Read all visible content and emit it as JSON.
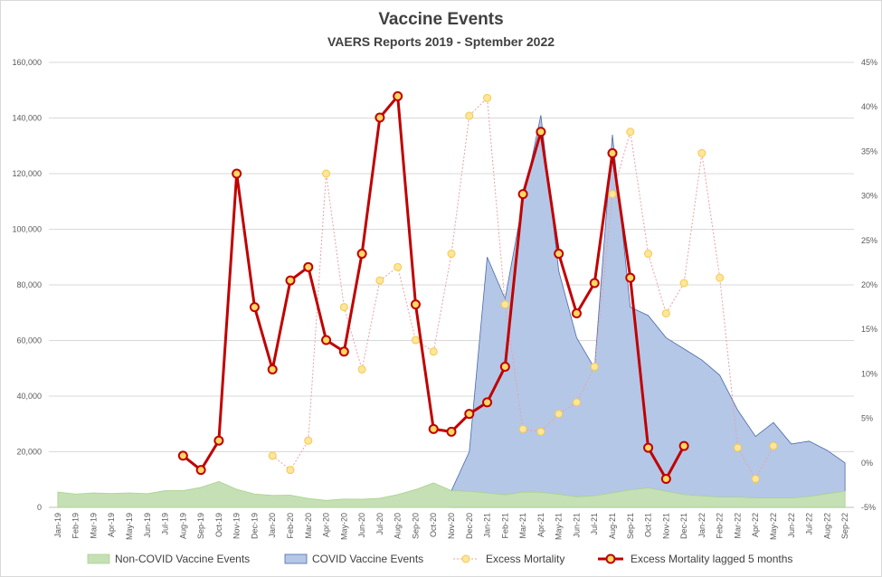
{
  "chart_data": {
    "type": "area",
    "title": "Vaccine Events",
    "subtitle": "VAERS Reports 2019 - Sptember 2022",
    "categories": [
      "Jan-19",
      "Feb-19",
      "Mar-19",
      "Apr-19",
      "May-19",
      "Jun-19",
      "Jul-19",
      "Aug-19",
      "Sep-19",
      "Oct-19",
      "Nov-19",
      "Dec-19",
      "Jan-20",
      "Feb-20",
      "Mar-20",
      "Apr-20",
      "May-20",
      "Jun-20",
      "Jul-20",
      "Aug-20",
      "Sep-20",
      "Oct-20",
      "Nov-20",
      "Dec-20",
      "Jan-21",
      "Feb-21",
      "Mar-21",
      "Apr-21",
      "May-21",
      "Jun-21",
      "Jul-21",
      "Aug-21",
      "Sep-21",
      "Oct-21",
      "Nov-21",
      "Dec-21",
      "Jan-22",
      "Feb-22",
      "Mar-22",
      "Apr-22",
      "May-22",
      "Jun-22",
      "Jul-22",
      "Aug-22",
      "Sep-22"
    ],
    "y_left": {
      "min": 0,
      "max": 160000,
      "step": 20000,
      "ticks": [
        "0",
        "20,000",
        "40,000",
        "60,000",
        "80,000",
        "100,000",
        "120,000",
        "140,000",
        "160,000"
      ]
    },
    "y_right": {
      "min": -5,
      "max": 45,
      "step": 5,
      "ticks": [
        "-5%",
        "0%",
        "5%",
        "10%",
        "15%",
        "20%",
        "25%",
        "30%",
        "35%",
        "40%",
        "45%"
      ]
    },
    "gridlines": true,
    "legend_position": "bottom",
    "series": [
      {
        "name": "Non-COVID Vaccine Events",
        "kind": "area",
        "axis": "left",
        "color": "#c5e0b4",
        "stroke": "#a9d18e",
        "values": [
          5500,
          4800,
          5200,
          5000,
          5200,
          4900,
          6000,
          6000,
          7200,
          9300,
          6500,
          4800,
          4300,
          4400,
          3200,
          2500,
          3000,
          2900,
          3300,
          4600,
          6400,
          8800,
          6000,
          5800,
          5200,
          4500,
          5500,
          5400,
          4700,
          3800,
          4200,
          5200,
          6300,
          7000,
          5800,
          4600,
          4100,
          3700,
          3700,
          3400,
          3400,
          3400,
          3900,
          4900,
          5800
        ]
      },
      {
        "name": "COVID Vaccine Events",
        "kind": "area",
        "axis": "left",
        "color": "#b4c7e7",
        "stroke": "#4a69a8",
        "values": [
          null,
          null,
          null,
          null,
          null,
          null,
          null,
          null,
          null,
          null,
          null,
          null,
          null,
          null,
          null,
          null,
          null,
          null,
          null,
          null,
          null,
          null,
          6000,
          20000,
          90000,
          75000,
          110000,
          141000,
          85000,
          61000,
          50000,
          134000,
          72000,
          69000,
          61000,
          57000,
          53000,
          47500,
          35000,
          25500,
          30500,
          22800,
          23800,
          20500,
          16000
        ]
      },
      {
        "name": "Excess Mortality",
        "kind": "line",
        "axis": "right",
        "color": "#ffd966",
        "stroke": "#e8a2a2",
        "dashed": true,
        "values": [
          null,
          null,
          null,
          null,
          null,
          null,
          null,
          null,
          null,
          null,
          null,
          null,
          0.8,
          -0.8,
          2.5,
          32.5,
          17.5,
          10.5,
          20.5,
          22,
          13.8,
          12.5,
          23.5,
          39,
          41,
          17.8,
          3.8,
          3.5,
          5.5,
          6.8,
          10.8,
          30.2,
          37.2,
          23.5,
          16.8,
          20.2,
          34.8,
          20.8,
          1.7,
          -1.8,
          1.9,
          null,
          null,
          null,
          null
        ]
      },
      {
        "name": "Excess Mortality lagged 5 months",
        "kind": "line",
        "axis": "right",
        "color": "#c00000",
        "marker_fill": "#ffd966",
        "dashed": false,
        "values": [
          null,
          null,
          null,
          null,
          null,
          null,
          null,
          0.8,
          -0.8,
          2.5,
          32.5,
          17.5,
          10.5,
          20.5,
          22,
          13.8,
          12.5,
          23.5,
          38.8,
          41.2,
          17.8,
          3.8,
          3.5,
          5.5,
          6.8,
          10.8,
          30.2,
          37.2,
          23.5,
          16.8,
          20.2,
          34.8,
          20.8,
          1.7,
          -1.8,
          1.9,
          null,
          null,
          null,
          null,
          null,
          null,
          null,
          null,
          null
        ]
      }
    ]
  }
}
